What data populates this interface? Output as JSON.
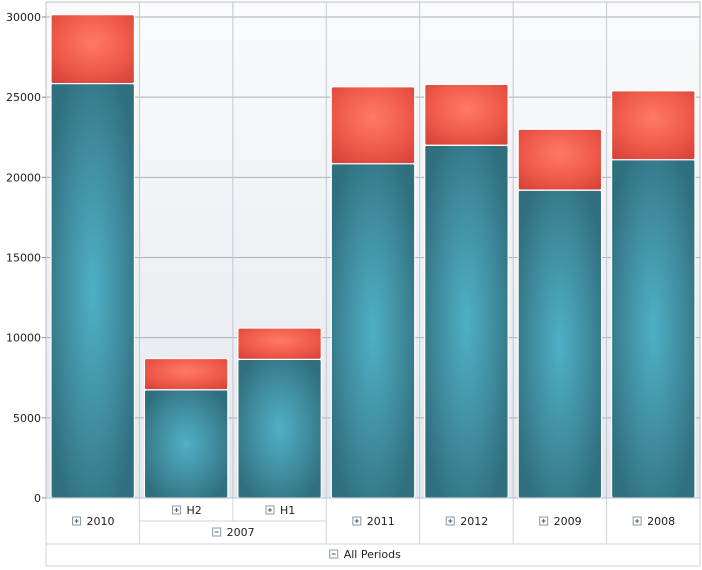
{
  "chart_data": {
    "type": "bar",
    "stacked": true,
    "categories": [
      {
        "label": "2010",
        "expandable": true,
        "group": null
      },
      {
        "label": "H2",
        "expandable": true,
        "group": "2007"
      },
      {
        "label": "H1",
        "expandable": true,
        "group": "2007"
      },
      {
        "label": "2011",
        "expandable": true,
        "group": null
      },
      {
        "label": "2012",
        "expandable": true,
        "group": null
      },
      {
        "label": "2009",
        "expandable": true,
        "group": null
      },
      {
        "label": "2008",
        "expandable": true,
        "group": null
      }
    ],
    "groups": [
      {
        "label": "2007",
        "collapsible": true
      }
    ],
    "root_label": "All Periods",
    "series": [
      {
        "color": "#3f8a9c",
        "values": [
          25850,
          6750,
          8650,
          20850,
          22000,
          19200,
          21100
        ]
      },
      {
        "color": "#ef5a4a",
        "values": [
          4300,
          1950,
          1950,
          4800,
          3800,
          3800,
          4300
        ]
      }
    ],
    "ylim": [
      0,
      30000
    ],
    "yticks": [
      0,
      5000,
      10000,
      15000,
      20000,
      25000,
      30000
    ],
    "grid": true,
    "legend": "none"
  }
}
